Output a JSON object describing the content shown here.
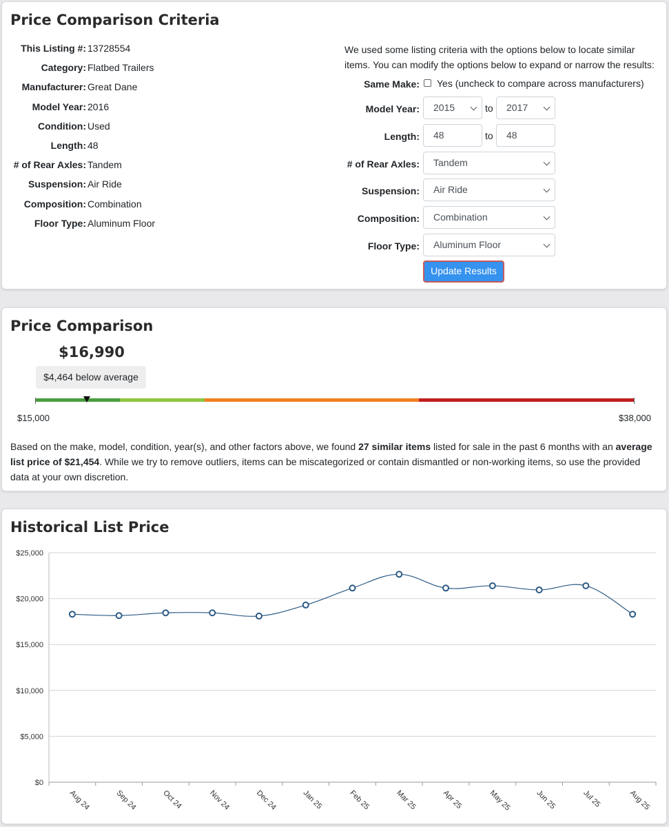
{
  "criteria": {
    "title": "Price Comparison Criteria",
    "specs": [
      {
        "label": "This Listing #:",
        "value": "13728554"
      },
      {
        "label": "Category:",
        "value": "Flatbed Trailers"
      },
      {
        "label": "Manufacturer:",
        "value": "Great Dane"
      },
      {
        "label": "Model Year:",
        "value": "2016"
      },
      {
        "label": "Condition:",
        "value": "Used"
      },
      {
        "label": "Length:",
        "value": "48"
      },
      {
        "label": "# of Rear Axles:",
        "value": "Tandem"
      },
      {
        "label": "Suspension:",
        "value": "Air Ride"
      },
      {
        "label": "Composition:",
        "value": "Combination"
      },
      {
        "label": "Floor Type:",
        "value": "Aluminum Floor"
      }
    ],
    "intro": "We used some listing criteria with the options below to locate similar items. You can modify the options below to expand or narrow the results:",
    "form": {
      "same_make_label": "Same Make:",
      "same_make_text": "Yes (uncheck to compare across manufacturers)",
      "same_make_checked": false,
      "model_year_label": "Model Year:",
      "model_year_from": "2015",
      "model_year_to": "2017",
      "length_label": "Length:",
      "length_from": "48",
      "length_to": "48",
      "to_text": "to",
      "rear_axles_label": "# of Rear Axles:",
      "rear_axles_value": "Tandem",
      "suspension_label": "Suspension:",
      "suspension_value": "Air Ride",
      "composition_label": "Composition:",
      "composition_value": "Combination",
      "floor_type_label": "Floor Type:",
      "floor_type_value": "Aluminum Floor",
      "update_button": "Update Results"
    }
  },
  "comparison": {
    "title": "Price Comparison",
    "price": "$16,990",
    "below_text": "$4,464 below average",
    "range_min_label": "$15,000",
    "range_max_label": "$38,000",
    "range_min": 15000,
    "range_max": 38000,
    "price_value": 16990,
    "segments": [
      {
        "from": 15000,
        "to": 18250,
        "color": "#4a9e3f"
      },
      {
        "from": 18250,
        "to": 21500,
        "color": "#8cc63f"
      },
      {
        "from": 21500,
        "to": 29750,
        "color": "#f08022"
      },
      {
        "from": 29750,
        "to": 38000,
        "color": "#c21f1f"
      }
    ],
    "summary_parts": [
      {
        "text": "Based on the make, model, condition, year(s), and other factors above, we found ",
        "bold": false
      },
      {
        "text": "27 similar items",
        "bold": true
      },
      {
        "text": " listed for sale in the past 6 months with an ",
        "bold": false
      },
      {
        "text": "average list price of $21,454",
        "bold": true
      },
      {
        "text": ". While we try to remove outliers, items can be miscategorized or contain dismantled or non-working items, so use the provided data at your own discretion.",
        "bold": false
      }
    ]
  },
  "history": {
    "title": "Historical List Price"
  },
  "chart_data": {
    "type": "line",
    "title": "Historical List Price",
    "xlabel": "",
    "ylabel": "",
    "categories": [
      "Aug 24",
      "Sep 24",
      "Oct 24",
      "Nov 24",
      "Dec 24",
      "Jan 25",
      "Feb 25",
      "Mar 25",
      "Apr 25",
      "May 25",
      "Jun 25",
      "Jul 25",
      "Aug 25"
    ],
    "values": [
      18300,
      18150,
      18450,
      18450,
      18100,
      19300,
      21150,
      22650,
      21150,
      21400,
      20950,
      21400,
      18300
    ],
    "ylim": [
      0,
      25000
    ],
    "yticks": [
      0,
      5000,
      10000,
      15000,
      20000,
      25000
    ],
    "ytick_labels": [
      "$0",
      "$5,000",
      "$10,000",
      "$15,000",
      "$20,000",
      "$25,000"
    ],
    "grid": true,
    "legend": "none",
    "line_color": "#2c5a85"
  }
}
